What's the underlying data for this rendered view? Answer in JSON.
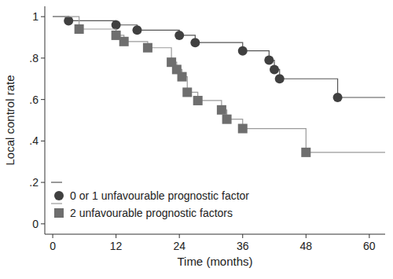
{
  "chart_data": {
    "type": "line",
    "x_label": "Time (months)",
    "y_label": "Local control rate",
    "xlim": [
      -1.5,
      63
    ],
    "ylim": [
      -0.05,
      1.05
    ],
    "xticks": [
      0,
      12,
      24,
      36,
      48,
      60
    ],
    "yticks": [
      {
        "value": 0,
        "label": "0"
      },
      {
        "value": 0.2,
        "label": ".2"
      },
      {
        "value": 0.4,
        "label": ".4"
      },
      {
        "value": 0.6,
        "label": ".6"
      },
      {
        "value": 0.8,
        "label": ".8"
      },
      {
        "value": 1,
        "label": "1"
      }
    ],
    "grid": false,
    "legend": "bottom-left",
    "line_style": "step",
    "series": [
      {
        "name": "0 or 1 unfavourable prognostic factor",
        "color": "#404040",
        "marker": "circle",
        "x": [
          0,
          3,
          12,
          16,
          24,
          27,
          36,
          41,
          42,
          43,
          54,
          63
        ],
        "values": [
          1,
          0.98,
          0.96,
          0.935,
          0.91,
          0.875,
          0.835,
          0.79,
          0.745,
          0.7,
          0.61,
          0.61
        ],
        "markers": {
          "x": [
            3,
            12,
            16,
            24,
            27,
            36,
            41,
            42,
            43,
            54
          ],
          "values": [
            0.98,
            0.96,
            0.935,
            0.91,
            0.875,
            0.835,
            0.79,
            0.745,
            0.7,
            0.61
          ]
        }
      },
      {
        "name": "2 unfavourable prognostic factors",
        "color": "#6e6e6e",
        "marker": "square",
        "x": [
          0,
          5,
          12,
          13.5,
          18,
          22.5,
          23.5,
          24.5,
          25.5,
          27.5,
          32,
          33,
          36,
          48,
          63
        ],
        "values": [
          1,
          0.94,
          0.91,
          0.88,
          0.85,
          0.78,
          0.745,
          0.71,
          0.635,
          0.595,
          0.55,
          0.505,
          0.46,
          0.345,
          0.345
        ],
        "markers": {
          "x": [
            5,
            12,
            13.5,
            18,
            22.5,
            23.5,
            24.5,
            25.5,
            27.5,
            32,
            33,
            36,
            48
          ],
          "values": [
            0.94,
            0.91,
            0.88,
            0.85,
            0.78,
            0.745,
            0.71,
            0.635,
            0.595,
            0.55,
            0.505,
            0.46,
            0.345
          ]
        }
      }
    ]
  }
}
